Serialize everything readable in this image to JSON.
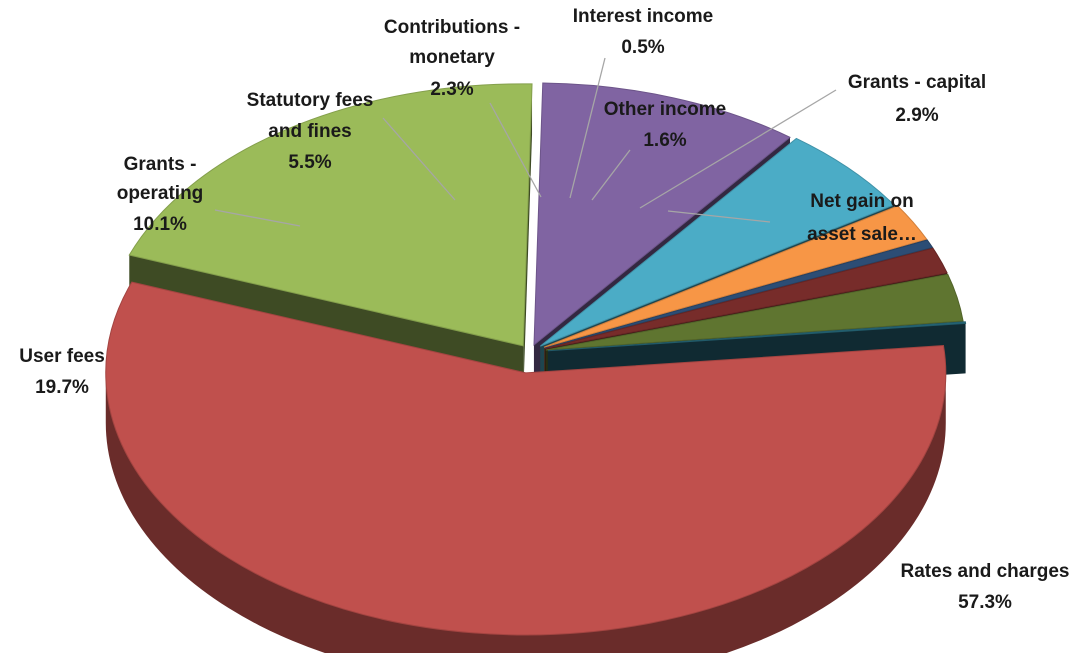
{
  "chart_data": {
    "type": "pie",
    "variant": "3d-exploded",
    "title": "",
    "slices": [
      {
        "label": "Rates and charges",
        "value": 57.3,
        "value_label": "57.3%",
        "color": "#c0504d"
      },
      {
        "label": "User fees",
        "value": 19.7,
        "value_label": "19.7%",
        "color": "#9bbb59"
      },
      {
        "label": "Grants - operating",
        "value": 10.1,
        "value_label": "10.1%",
        "color": "#8064a2"
      },
      {
        "label": "Statutory fees and fines",
        "value": 5.5,
        "value_label": "5.5%",
        "color": "#4bacc6"
      },
      {
        "label": "Contributions - monetary",
        "value": 2.3,
        "value_label": "2.3%",
        "color": "#f79646"
      },
      {
        "label": "Interest income",
        "value": 0.5,
        "value_label": "0.5%",
        "color": "#2c4d75"
      },
      {
        "label": "Other income",
        "value": 1.6,
        "value_label": "1.6%",
        "color": "#772c2a"
      },
      {
        "label": "Grants - capital",
        "value": 2.9,
        "value_label": "2.9%",
        "color": "#5f7530"
      },
      {
        "label": "Net gain on asset sale…",
        "value": 0.1,
        "value_label": "",
        "color": "#276a7c"
      }
    ],
    "legend": "none",
    "data_labels": "outside with leader lines"
  }
}
